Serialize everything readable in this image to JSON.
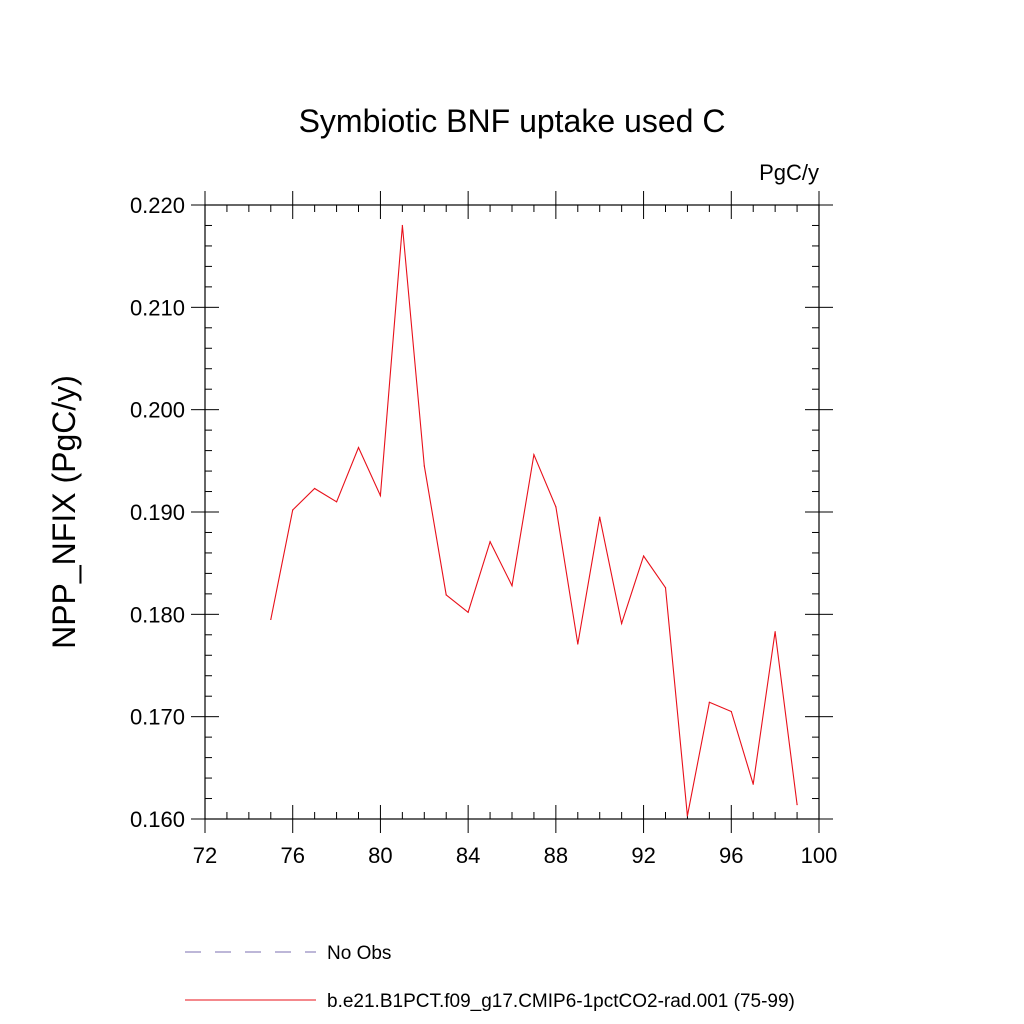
{
  "chart_data": {
    "type": "line",
    "title": "Symbiotic BNF uptake used C",
    "units_label": "PgC/y",
    "xlabel": "",
    "ylabel": "NPP_NFIX  (PgC/y)",
    "xlim": [
      72,
      100
    ],
    "ylim": [
      0.16,
      0.22
    ],
    "x_ticks": [
      72,
      76,
      80,
      84,
      88,
      92,
      96,
      100
    ],
    "y_ticks": [
      "0.160",
      "0.170",
      "0.180",
      "0.190",
      "0.200",
      "0.210",
      "0.220"
    ],
    "y_tick_values": [
      0.16,
      0.17,
      0.18,
      0.19,
      0.2,
      0.21,
      0.22
    ],
    "grid": false,
    "legend_position": "bottom",
    "series": [
      {
        "name": "b.e21.B1PCT.f09_g17.CMIP6-1pctCO2-rad.001 (75-99)",
        "color": "#e8101a",
        "style": "solid",
        "x": [
          75,
          76,
          77,
          78,
          79,
          80,
          81,
          82,
          83,
          84,
          85,
          86,
          87,
          88,
          89,
          90,
          91,
          92,
          93,
          94,
          95,
          96,
          97,
          98,
          99
        ],
        "y": [
          0.1795,
          0.1902,
          0.1923,
          0.191,
          0.1963,
          0.1916,
          0.218,
          0.1945,
          0.1819,
          0.1802,
          0.1871,
          0.1828,
          0.1956,
          0.1905,
          0.1771,
          0.1895,
          0.1791,
          0.1857,
          0.1826,
          0.1603,
          0.1714,
          0.1705,
          0.1634,
          0.1783,
          0.1614
        ]
      }
    ],
    "legend_entries": [
      {
        "label": "No Obs",
        "color": "#7b6fb0",
        "style": "dashed"
      },
      {
        "label": "b.e21.B1PCT.f09_g17.CMIP6-1pctCO2-rad.001 (75-99)",
        "color": "#e8101a",
        "style": "solid"
      }
    ]
  }
}
